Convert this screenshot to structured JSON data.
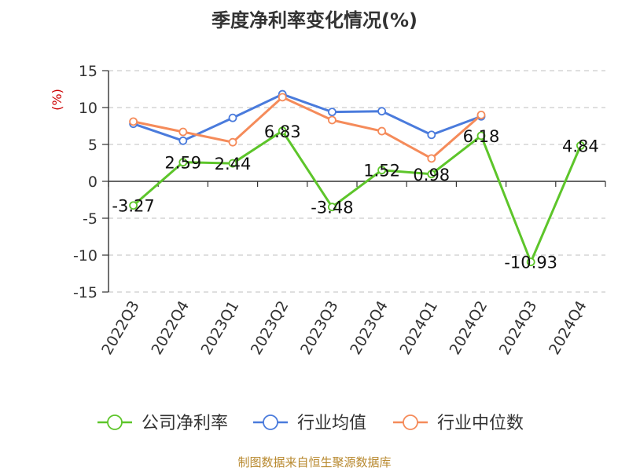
{
  "title": "季度净利率变化情况(%)",
  "source": "制图数据来自恒生聚源数据库",
  "chart_data": {
    "type": "line",
    "ylabel": "(%)",
    "ylim": [
      -15,
      15
    ],
    "yticks": [
      15,
      10,
      5,
      0,
      -5,
      -10,
      -15
    ],
    "grid": true,
    "legend_position": "bottom",
    "categories": [
      "2022Q3",
      "2022Q4",
      "2023Q1",
      "2023Q2",
      "2023Q3",
      "2023Q4",
      "2024Q1",
      "2024Q2",
      "2024Q3",
      "2024Q4"
    ],
    "series": [
      {
        "name": "公司净利率",
        "color": "#5dc52a",
        "values": [
          -3.27,
          2.59,
          2.44,
          6.83,
          -3.48,
          1.52,
          0.98,
          6.18,
          -10.93,
          4.84
        ],
        "labels": [
          "-3.27",
          "2.59",
          "2.44",
          "6.83",
          "-3.48",
          "1.52",
          "0.98",
          "6.18",
          "-10.93",
          "4.84"
        ]
      },
      {
        "name": "行业均值",
        "color": "#4a7bdc",
        "values": [
          7.8,
          5.5,
          8.6,
          11.8,
          9.4,
          9.5,
          6.3,
          8.8,
          null,
          null
        ]
      },
      {
        "name": "行业中位数",
        "color": "#f58b5a",
        "values": [
          8.1,
          6.7,
          5.3,
          11.4,
          8.3,
          6.8,
          3.1,
          9.0,
          null,
          null
        ]
      }
    ]
  }
}
